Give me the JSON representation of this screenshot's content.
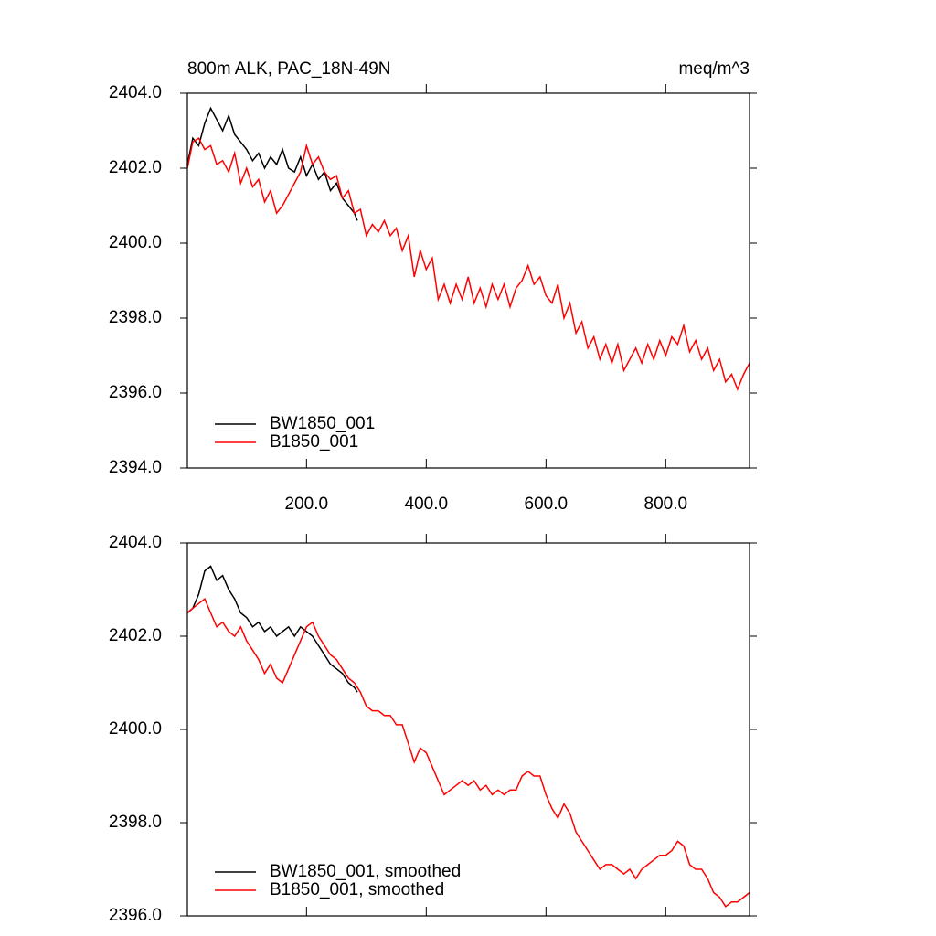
{
  "chart_data": [
    {
      "type": "line",
      "title": "800m ALK, PAC_18N-49N",
      "units": "meq/m^3",
      "xlim": [
        1,
        940
      ],
      "ylim": [
        2394,
        2404
      ],
      "xticks": [
        {
          "value": 200,
          "label": "200.0"
        },
        {
          "value": 400,
          "label": "400.0"
        },
        {
          "value": 600,
          "label": "600.0"
        },
        {
          "value": 800,
          "label": "800.0"
        }
      ],
      "yticks": [
        {
          "value": 2394,
          "label": "2394.0"
        },
        {
          "value": 2396,
          "label": "2396.0"
        },
        {
          "value": 2398,
          "label": "2398.0"
        },
        {
          "value": 2400,
          "label": "2400.0"
        },
        {
          "value": 2402,
          "label": "2402.0"
        },
        {
          "value": 2404,
          "label": "2404.0"
        }
      ],
      "show_xtick_labels": true,
      "legend": "lower left",
      "series": [
        {
          "name": "BW1850_001",
          "color": "#000000",
          "x": [
            1,
            10,
            20,
            30,
            40,
            50,
            60,
            70,
            80,
            90,
            100,
            110,
            120,
            130,
            140,
            150,
            160,
            170,
            180,
            190,
            200,
            210,
            220,
            230,
            240,
            250,
            260,
            270,
            280,
            285
          ],
          "values": [
            2402.1,
            2402.8,
            2402.6,
            2403.2,
            2403.6,
            2403.3,
            2403.0,
            2403.4,
            2402.9,
            2402.7,
            2402.5,
            2402.2,
            2402.4,
            2402.0,
            2402.3,
            2402.1,
            2402.5,
            2402.0,
            2401.9,
            2402.3,
            2401.8,
            2402.1,
            2401.7,
            2401.9,
            2401.4,
            2401.6,
            2401.2,
            2401.0,
            2400.8,
            2400.6
          ]
        },
        {
          "name": "B1850_001",
          "color": "#ff0000",
          "x": [
            1,
            10,
            20,
            30,
            40,
            50,
            60,
            70,
            80,
            90,
            100,
            110,
            120,
            130,
            140,
            150,
            160,
            170,
            180,
            190,
            200,
            210,
            220,
            230,
            240,
            250,
            260,
            270,
            280,
            290,
            300,
            310,
            320,
            330,
            340,
            350,
            360,
            370,
            380,
            390,
            400,
            410,
            420,
            430,
            440,
            450,
            460,
            470,
            480,
            490,
            500,
            510,
            520,
            530,
            540,
            550,
            560,
            570,
            580,
            590,
            600,
            610,
            620,
            630,
            640,
            650,
            660,
            670,
            680,
            690,
            700,
            710,
            720,
            730,
            740,
            750,
            760,
            770,
            780,
            790,
            800,
            810,
            820,
            830,
            840,
            850,
            860,
            870,
            880,
            890,
            900,
            910,
            920,
            930,
            940
          ],
          "values": [
            2402.0,
            2402.7,
            2402.8,
            2402.5,
            2402.6,
            2402.1,
            2402.2,
            2401.9,
            2402.4,
            2401.6,
            2402.0,
            2401.5,
            2401.7,
            2401.1,
            2401.4,
            2400.8,
            2401.0,
            2401.3,
            2401.6,
            2401.9,
            2402.6,
            2402.1,
            2402.3,
            2401.9,
            2401.7,
            2401.8,
            2401.2,
            2401.4,
            2400.8,
            2400.9,
            2400.2,
            2400.5,
            2400.3,
            2400.6,
            2400.2,
            2400.4,
            2399.8,
            2400.2,
            2399.1,
            2399.8,
            2399.3,
            2399.6,
            2398.5,
            2398.9,
            2398.4,
            2398.9,
            2398.5,
            2399.1,
            2398.4,
            2398.8,
            2398.3,
            2398.9,
            2398.5,
            2398.9,
            2398.3,
            2398.8,
            2399.0,
            2399.4,
            2398.9,
            2399.1,
            2398.6,
            2398.4,
            2398.9,
            2398.0,
            2398.4,
            2397.6,
            2397.9,
            2397.2,
            2397.5,
            2396.9,
            2397.3,
            2396.8,
            2397.3,
            2396.6,
            2396.9,
            2397.2,
            2396.8,
            2397.3,
            2396.9,
            2397.4,
            2397.0,
            2397.5,
            2397.3,
            2397.8,
            2397.1,
            2397.4,
            2396.9,
            2397.2,
            2396.6,
            2396.9,
            2396.3,
            2396.5,
            2396.1,
            2396.5,
            2396.8
          ]
        }
      ]
    },
    {
      "type": "line",
      "xlim": [
        1,
        940
      ],
      "ylim": [
        2396,
        2404
      ],
      "xticks": [
        200,
        400,
        600,
        800
      ],
      "yticks": [
        {
          "value": 2396,
          "label": "2396.0"
        },
        {
          "value": 2398,
          "label": "2398.0"
        },
        {
          "value": 2400,
          "label": "2400.0"
        },
        {
          "value": 2402,
          "label": "2402.0"
        },
        {
          "value": 2404,
          "label": "2404.0"
        }
      ],
      "show_xtick_labels": false,
      "legend": "lower left",
      "series": [
        {
          "name": "BW1850_001, smoothed",
          "color": "#000000",
          "x": [
            1,
            10,
            20,
            30,
            40,
            50,
            60,
            70,
            80,
            90,
            100,
            110,
            120,
            130,
            140,
            150,
            160,
            170,
            180,
            190,
            200,
            210,
            220,
            230,
            240,
            250,
            260,
            270,
            280,
            285
          ],
          "values": [
            2402.5,
            2402.6,
            2402.9,
            2403.4,
            2403.5,
            2403.2,
            2403.3,
            2403.0,
            2402.8,
            2402.5,
            2402.4,
            2402.2,
            2402.3,
            2402.1,
            2402.2,
            2402.0,
            2402.1,
            2402.2,
            2402.0,
            2402.2,
            2402.1,
            2402.0,
            2401.8,
            2401.6,
            2401.4,
            2401.3,
            2401.2,
            2401.0,
            2400.9,
            2400.8
          ]
        },
        {
          "name": "B1850_001, smoothed",
          "color": "#ff0000",
          "x": [
            1,
            10,
            20,
            30,
            40,
            50,
            60,
            70,
            80,
            90,
            100,
            110,
            120,
            130,
            140,
            150,
            160,
            170,
            180,
            190,
            200,
            210,
            220,
            230,
            240,
            250,
            260,
            270,
            280,
            290,
            300,
            310,
            320,
            330,
            340,
            350,
            360,
            370,
            380,
            390,
            400,
            410,
            420,
            430,
            440,
            450,
            460,
            470,
            480,
            490,
            500,
            510,
            520,
            530,
            540,
            550,
            560,
            570,
            580,
            590,
            600,
            610,
            620,
            630,
            640,
            650,
            660,
            670,
            680,
            690,
            700,
            710,
            720,
            730,
            740,
            750,
            760,
            770,
            780,
            790,
            800,
            810,
            820,
            830,
            840,
            850,
            860,
            870,
            880,
            890,
            900,
            910,
            920,
            930,
            940
          ],
          "values": [
            2402.5,
            2402.6,
            2402.7,
            2402.8,
            2402.5,
            2402.2,
            2402.3,
            2402.1,
            2402.0,
            2402.2,
            2401.9,
            2401.7,
            2401.5,
            2401.2,
            2401.4,
            2401.1,
            2401.0,
            2401.3,
            2401.6,
            2401.9,
            2402.2,
            2402.3,
            2402.0,
            2401.8,
            2401.6,
            2401.5,
            2401.3,
            2401.1,
            2401.0,
            2400.8,
            2400.5,
            2400.4,
            2400.4,
            2400.3,
            2400.3,
            2400.1,
            2400.1,
            2399.7,
            2399.3,
            2399.6,
            2399.5,
            2399.2,
            2398.9,
            2398.6,
            2398.7,
            2398.8,
            2398.9,
            2398.8,
            2398.9,
            2398.7,
            2398.8,
            2398.6,
            2398.7,
            2398.6,
            2398.7,
            2398.7,
            2399.0,
            2399.1,
            2399.0,
            2399.0,
            2398.6,
            2398.3,
            2398.1,
            2398.4,
            2398.2,
            2397.8,
            2397.6,
            2397.4,
            2397.2,
            2397.0,
            2397.1,
            2397.1,
            2397.0,
            2396.9,
            2397.0,
            2396.8,
            2397.0,
            2397.1,
            2397.2,
            2397.3,
            2397.3,
            2397.4,
            2397.6,
            2397.5,
            2397.1,
            2397.0,
            2397.0,
            2396.8,
            2396.5,
            2396.4,
            2396.2,
            2396.3,
            2396.3,
            2396.4,
            2396.5
          ]
        }
      ]
    }
  ]
}
